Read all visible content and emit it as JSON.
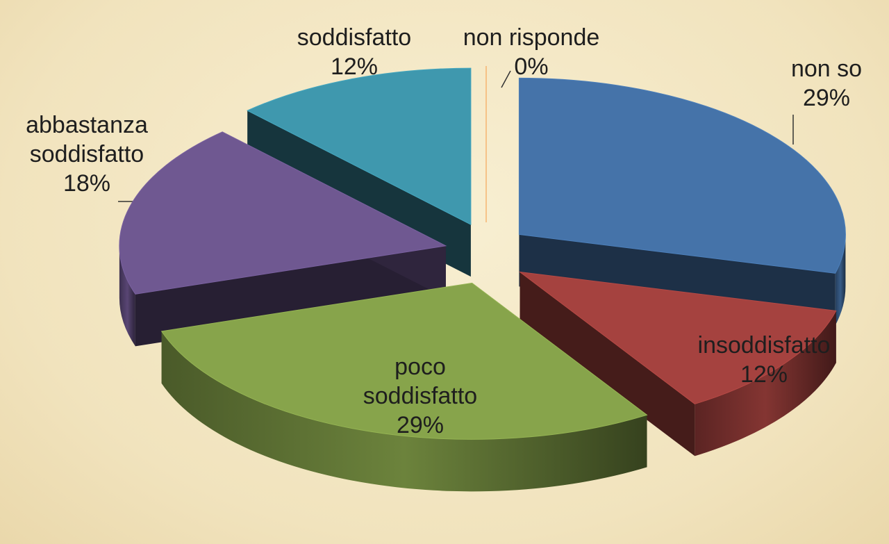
{
  "chart_data": {
    "type": "pie3d",
    "categories": [
      "non so",
      "insoddisfatto",
      "poco soddisfatto",
      "abbastanza soddisfatto",
      "soddisfatto",
      "non risponde"
    ],
    "values": [
      29,
      12,
      29,
      18,
      12,
      0
    ],
    "value_labels": [
      "29%",
      "12%",
      "29%",
      "18%",
      "12%",
      "0%"
    ],
    "colors": [
      "#4573a9",
      "#a5423f",
      "#87a44b",
      "#6f5891",
      "#3f98ae",
      "#e08a3c"
    ]
  }
}
